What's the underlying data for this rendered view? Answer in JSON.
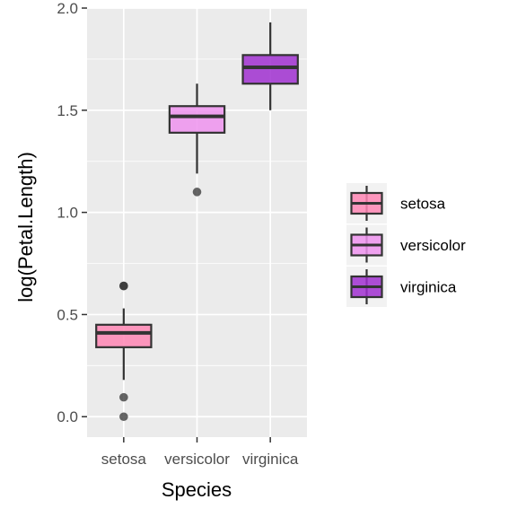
{
  "chart_data": {
    "type": "boxplot",
    "title": "",
    "xlabel": "Species",
    "ylabel": "log(Petal.Length)",
    "categories": [
      "setosa",
      "versicolor",
      "virginica"
    ],
    "ylim": [
      -0.1,
      2.0
    ],
    "y_ticks": [
      {
        "value": 0.0,
        "label": "0.0"
      },
      {
        "value": 0.5,
        "label": "0.5"
      },
      {
        "value": 1.0,
        "label": "1.0"
      },
      {
        "value": 1.5,
        "label": "1.5"
      },
      {
        "value": 2.0,
        "label": "2.0"
      }
    ],
    "grid": true,
    "legend_position": "right",
    "series": [
      {
        "name": "setosa",
        "color": "#ff86b4",
        "min": 0.18,
        "q1": 0.34,
        "median": 0.41,
        "q3": 0.45,
        "max": 0.53,
        "outliers": [
          0.64,
          0.64,
          0.095,
          0.0
        ]
      },
      {
        "name": "versicolor",
        "color": "#ee93ee",
        "min": 1.19,
        "q1": 1.39,
        "median": 1.47,
        "q3": 1.52,
        "max": 1.63,
        "outliers": [
          1.1
        ]
      },
      {
        "name": "virginica",
        "color": "#a030d0",
        "min": 1.5,
        "q1": 1.63,
        "median": 1.71,
        "q3": 1.77,
        "max": 1.93,
        "outliers": []
      }
    ]
  }
}
